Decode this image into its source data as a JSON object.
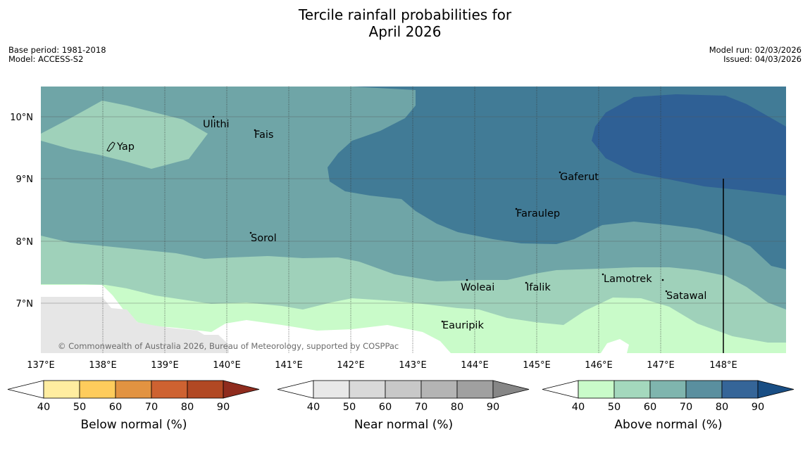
{
  "header": {
    "title_line1": "Tercile rainfall probabilities for",
    "title_line2": "April 2026",
    "base_period": "Base period: 1981-2018",
    "model": "Model: ACCESS-S2",
    "model_run": "Model run: 02/03/2026",
    "issued": "Issued: 04/03/2026"
  },
  "map": {
    "longitudes": [
      "137°E",
      "138°E",
      "139°E",
      "140°E",
      "141°E",
      "142°E",
      "143°E",
      "144°E",
      "145°E",
      "146°E",
      "147°E",
      "148°E"
    ],
    "latitudes": [
      "10°N",
      "9°N",
      "8°N",
      "7°N"
    ],
    "places": [
      "Yap",
      "Ulithi",
      "Fais",
      "Sorol",
      "Gaferut",
      "Faraulep",
      "Woleai",
      "Ifalik",
      "Lamotrek",
      "Satawal",
      "Eauripik"
    ],
    "copyright": "© Commonwealth of Australia 2026, Bureau of Meteorology, supported by COSPPac",
    "colors": {
      "above_50": "#c9fbc9",
      "above_60": "#9fd1ba",
      "above_70": "#6fa5a7",
      "above_80": "#417b96",
      "above_90": "#2f6095",
      "land_grey": "#e6e6e6"
    }
  },
  "legends": {
    "ticks": [
      "40",
      "50",
      "60",
      "70",
      "80",
      "90"
    ],
    "below": {
      "label": "Below normal (%)",
      "colors": [
        "#ffeda0",
        "#fecc5c",
        "#e29341",
        "#ce6231",
        "#b14823",
        "#8f2c1e"
      ]
    },
    "near": {
      "label": "Near normal (%)",
      "colors": [
        "#e8e8e8",
        "#d9d9d9",
        "#c8c8c8",
        "#b4b4b4",
        "#a0a0a0",
        "#868686"
      ]
    },
    "above": {
      "label": "Above normal (%)",
      "colors": [
        "#c9fbc9",
        "#a4d8bd",
        "#7fb5ae",
        "#5a8f9f",
        "#356598",
        "#194e84"
      ]
    }
  }
}
